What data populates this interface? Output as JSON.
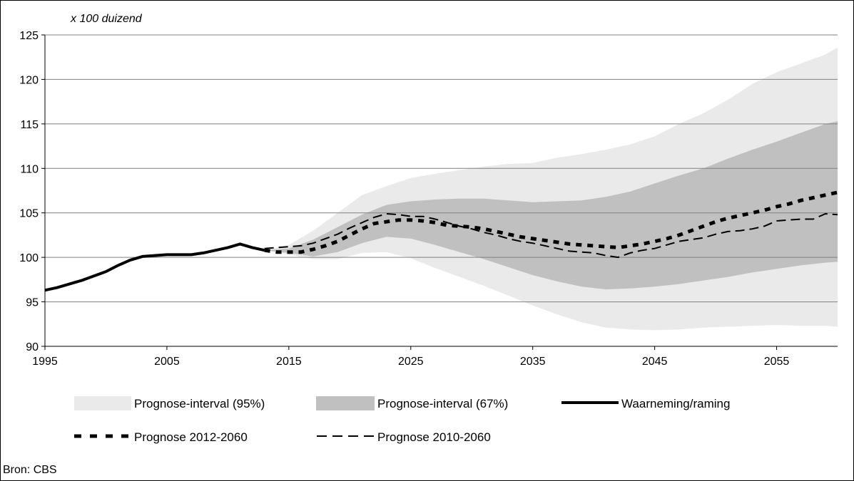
{
  "colors": {
    "interval95": "#eaeaea",
    "interval67": "#c0c0c0",
    "observed": "#000000",
    "prog2012": "#000000",
    "prog2010": "#000000",
    "grid": "#808080"
  },
  "source": "Bron: CBS",
  "chart_data": {
    "type": "area",
    "y_unit_label": "x 100 duizend",
    "xlim": [
      1995,
      2060
    ],
    "ylim": [
      90,
      125
    ],
    "x_ticks": [
      1995,
      2005,
      2015,
      2025,
      2035,
      2045,
      2055
    ],
    "y_ticks": [
      90,
      95,
      100,
      105,
      110,
      115,
      120,
      125
    ],
    "grid": "horizontal",
    "legend_position": "bottom",
    "legend": [
      {
        "key": "band95",
        "label": "Prognose-interval (95%)"
      },
      {
        "key": "band67",
        "label": "Prognose-interval (67%)"
      },
      {
        "key": "observed",
        "label": "Waarneming/raming"
      },
      {
        "key": "prog2012",
        "label": "Prognose 2012-2060"
      },
      {
        "key": "prog2010",
        "label": "Prognose 2010-2060"
      }
    ],
    "series": [
      {
        "key": "observed",
        "name": "Waarneming/raming",
        "style": "solid-thick",
        "x": [
          1995,
          1996,
          1997,
          1998,
          1999,
          2000,
          2001,
          2002,
          2003,
          2004,
          2005,
          2006,
          2007,
          2008,
          2009,
          2010,
          2011,
          2012,
          2013
        ],
        "y": [
          96.3,
          96.6,
          97.0,
          97.4,
          97.9,
          98.4,
          99.1,
          99.7,
          100.1,
          100.2,
          100.3,
          100.3,
          100.3,
          100.5,
          100.8,
          101.1,
          101.5,
          101.1,
          100.8
        ]
      },
      {
        "key": "prog2012",
        "name": "Prognose 2012-2060",
        "style": "dotted-thick",
        "x": [
          2013,
          2014,
          2015,
          2016,
          2017,
          2018,
          2019,
          2020,
          2021,
          2022,
          2023,
          2024,
          2025,
          2026,
          2027,
          2028,
          2029,
          2030,
          2031,
          2032,
          2033,
          2034,
          2035,
          2036,
          2037,
          2038,
          2039,
          2040,
          2041,
          2042,
          2043,
          2044,
          2045,
          2046,
          2047,
          2048,
          2049,
          2050,
          2051,
          2052,
          2053,
          2054,
          2055,
          2056,
          2057,
          2058,
          2059,
          2060
        ],
        "y": [
          100.8,
          100.6,
          100.6,
          100.6,
          100.9,
          101.3,
          101.8,
          102.5,
          103.2,
          103.8,
          104.0,
          104.2,
          104.2,
          104.1,
          103.9,
          103.6,
          103.5,
          103.4,
          103.2,
          102.9,
          102.6,
          102.3,
          102.1,
          101.9,
          101.7,
          101.5,
          101.4,
          101.3,
          101.2,
          101.1,
          101.3,
          101.5,
          101.8,
          102.1,
          102.5,
          103.0,
          103.5,
          104.0,
          104.4,
          104.7,
          105.0,
          105.3,
          105.7,
          106.0,
          106.4,
          106.7,
          107.0,
          107.3
        ]
      },
      {
        "key": "prog2010",
        "name": "Prognose 2010-2060",
        "style": "dashed",
        "x": [
          2013,
          2014,
          2015,
          2016,
          2017,
          2018,
          2019,
          2020,
          2021,
          2022,
          2023,
          2024,
          2025,
          2026,
          2027,
          2028,
          2029,
          2030,
          2031,
          2032,
          2033,
          2034,
          2035,
          2036,
          2037,
          2038,
          2039,
          2040,
          2041,
          2042,
          2043,
          2044,
          2045,
          2046,
          2047,
          2048,
          2049,
          2050,
          2051,
          2052,
          2053,
          2054,
          2055,
          2056,
          2057,
          2058,
          2059,
          2060
        ],
        "y": [
          101.0,
          101.1,
          101.2,
          101.3,
          101.6,
          102.1,
          102.6,
          103.3,
          103.9,
          104.5,
          104.9,
          104.8,
          104.6,
          104.6,
          104.3,
          103.9,
          103.5,
          103.2,
          102.8,
          102.5,
          102.1,
          101.8,
          101.6,
          101.3,
          101.0,
          100.7,
          100.6,
          100.5,
          100.2,
          100.0,
          100.5,
          100.8,
          101.0,
          101.4,
          101.8,
          102.0,
          102.2,
          102.6,
          102.9,
          103.0,
          103.2,
          103.5,
          104.1,
          104.2,
          104.3,
          104.3,
          104.9,
          104.8
        ]
      }
    ],
    "bands": [
      {
        "key": "band95",
        "name": "Prognose-interval (95%)",
        "x": [
          2013,
          2015,
          2017,
          2019,
          2021,
          2023,
          2025,
          2027,
          2029,
          2031,
          2033,
          2035,
          2037,
          2039,
          2041,
          2043,
          2045,
          2047,
          2049,
          2051,
          2053,
          2055,
          2057,
          2059,
          2060
        ],
        "upper": [
          100.8,
          101.4,
          103.0,
          105.0,
          107.0,
          108.0,
          108.9,
          109.4,
          109.8,
          110.2,
          110.5,
          110.6,
          111.2,
          111.6,
          112.1,
          112.7,
          113.6,
          115.0,
          116.2,
          117.7,
          119.5,
          120.8,
          121.8,
          122.8,
          123.6
        ],
        "lower": [
          100.8,
          100.3,
          99.8,
          99.8,
          100.5,
          100.6,
          99.9,
          98.8,
          97.8,
          96.8,
          95.7,
          94.6,
          93.6,
          92.7,
          92.1,
          91.9,
          91.8,
          91.9,
          92.1,
          92.2,
          92.3,
          92.4,
          92.3,
          92.3,
          92.2
        ]
      },
      {
        "key": "band67",
        "name": "Prognose-interval (67%)",
        "x": [
          2013,
          2015,
          2017,
          2019,
          2021,
          2023,
          2025,
          2027,
          2029,
          2031,
          2033,
          2035,
          2037,
          2039,
          2041,
          2043,
          2045,
          2047,
          2049,
          2051,
          2053,
          2055,
          2057,
          2059,
          2060
        ],
        "upper": [
          100.8,
          101.0,
          102.0,
          103.4,
          104.8,
          105.9,
          106.3,
          106.5,
          106.6,
          106.6,
          106.4,
          106.2,
          106.3,
          106.4,
          106.8,
          107.4,
          108.3,
          109.2,
          110.0,
          111.1,
          112.1,
          113.0,
          114.0,
          115.0,
          115.3
        ],
        "lower": [
          100.8,
          100.5,
          100.1,
          100.6,
          101.6,
          102.3,
          102.1,
          101.4,
          100.6,
          99.8,
          98.9,
          98.0,
          97.3,
          96.7,
          96.4,
          96.5,
          96.7,
          97.0,
          97.4,
          97.8,
          98.3,
          98.7,
          99.1,
          99.4,
          99.5
        ]
      }
    ]
  }
}
